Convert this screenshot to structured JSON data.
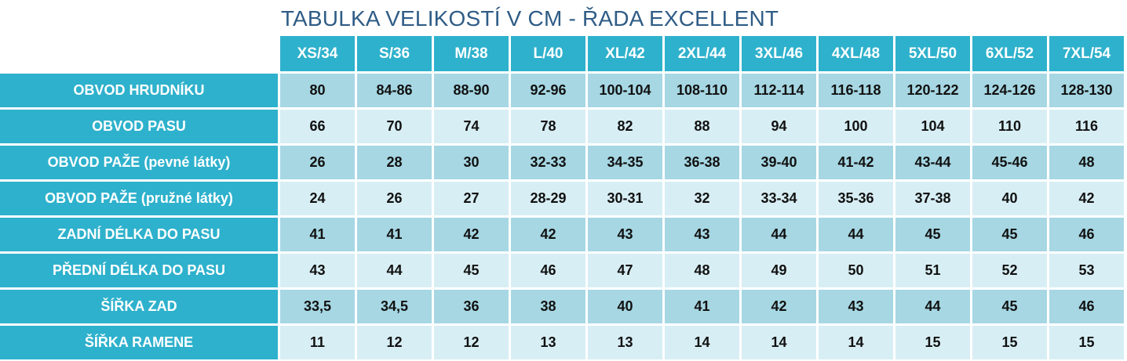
{
  "title": "TABULKA VELIKOSTÍ V CM - ŘADA EXCELLENT",
  "colors": {
    "header_bg": "#2eb1cc",
    "header_text": "#ffffff",
    "title_text": "#2f5c86",
    "row_dark": "#a6d7e3",
    "row_light": "#d7eef4"
  },
  "table": {
    "columns": [
      "XS/34",
      "S/36",
      "M/38",
      "L/40",
      "XL/42",
      "2XL/44",
      "3XL/46",
      "4XL/48",
      "5XL/50",
      "6XL/52",
      "7XL/54"
    ],
    "rows": [
      {
        "label": "OBVOD HRUDNÍKU",
        "values": [
          "80",
          "84-86",
          "88-90",
          "92-96",
          "100-104",
          "108-110",
          "112-114",
          "116-118",
          "120-122",
          "124-126",
          "128-130"
        ]
      },
      {
        "label": "OBVOD PASU",
        "values": [
          "66",
          "70",
          "74",
          "78",
          "82",
          "88",
          "94",
          "100",
          "104",
          "110",
          "116"
        ]
      },
      {
        "label": "OBVOD PAŽE (pevné látky)",
        "values": [
          "26",
          "28",
          "30",
          "32-33",
          "34-35",
          "36-38",
          "39-40",
          "41-42",
          "43-44",
          "45-46",
          "48"
        ]
      },
      {
        "label": "OBVOD PAŽE (pružné látky)",
        "values": [
          "24",
          "26",
          "27",
          "28-29",
          "30-31",
          "32",
          "33-34",
          "35-36",
          "37-38",
          "40",
          "42"
        ]
      },
      {
        "label": "ZADNÍ DÉLKA DO PASU",
        "values": [
          "41",
          "41",
          "42",
          "42",
          "43",
          "43",
          "44",
          "44",
          "45",
          "45",
          "46"
        ]
      },
      {
        "label": "PŘEDNÍ DÉLKA DO PASU",
        "values": [
          "43",
          "44",
          "45",
          "46",
          "47",
          "48",
          "49",
          "50",
          "51",
          "52",
          "53"
        ]
      },
      {
        "label": "ŠÍŘKA ZAD",
        "values": [
          "33,5",
          "34,5",
          "36",
          "38",
          "40",
          "41",
          "42",
          "43",
          "44",
          "45",
          "46"
        ]
      },
      {
        "label": "ŠÍŘKA RAMENE",
        "values": [
          "11",
          "12",
          "12",
          "13",
          "13",
          "14",
          "14",
          "14",
          "15",
          "15",
          "15"
        ]
      }
    ]
  }
}
